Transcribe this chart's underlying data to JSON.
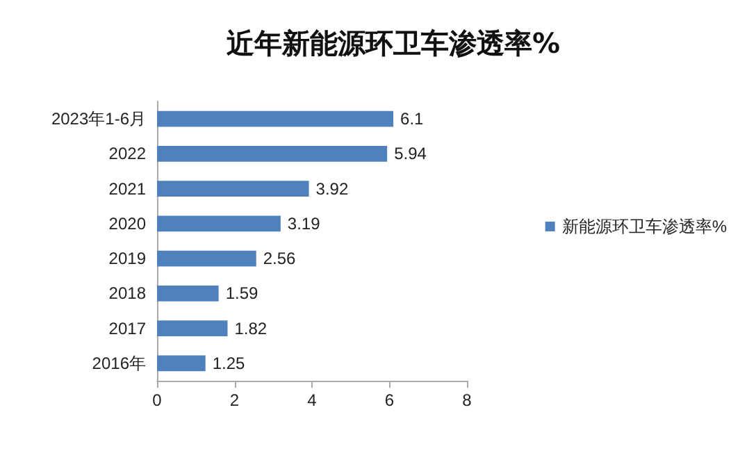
{
  "chart_data": {
    "type": "bar",
    "orientation": "horizontal",
    "title": "近年新能源环卫车渗透率%",
    "categories": [
      "2023年1-6月",
      "2022",
      "2021",
      "2020",
      "2019",
      "2018",
      "2017",
      "2016年"
    ],
    "series": [
      {
        "name": "新能源环卫车渗透率%",
        "color": "#4f81bd",
        "values": [
          6.1,
          5.94,
          3.92,
          3.19,
          2.56,
          1.59,
          1.82,
          1.25
        ]
      }
    ],
    "xlim": [
      0,
      8
    ],
    "xticks": [
      0,
      2,
      4,
      6,
      8
    ],
    "grid": false,
    "legend": "right",
    "data_labels": true
  }
}
